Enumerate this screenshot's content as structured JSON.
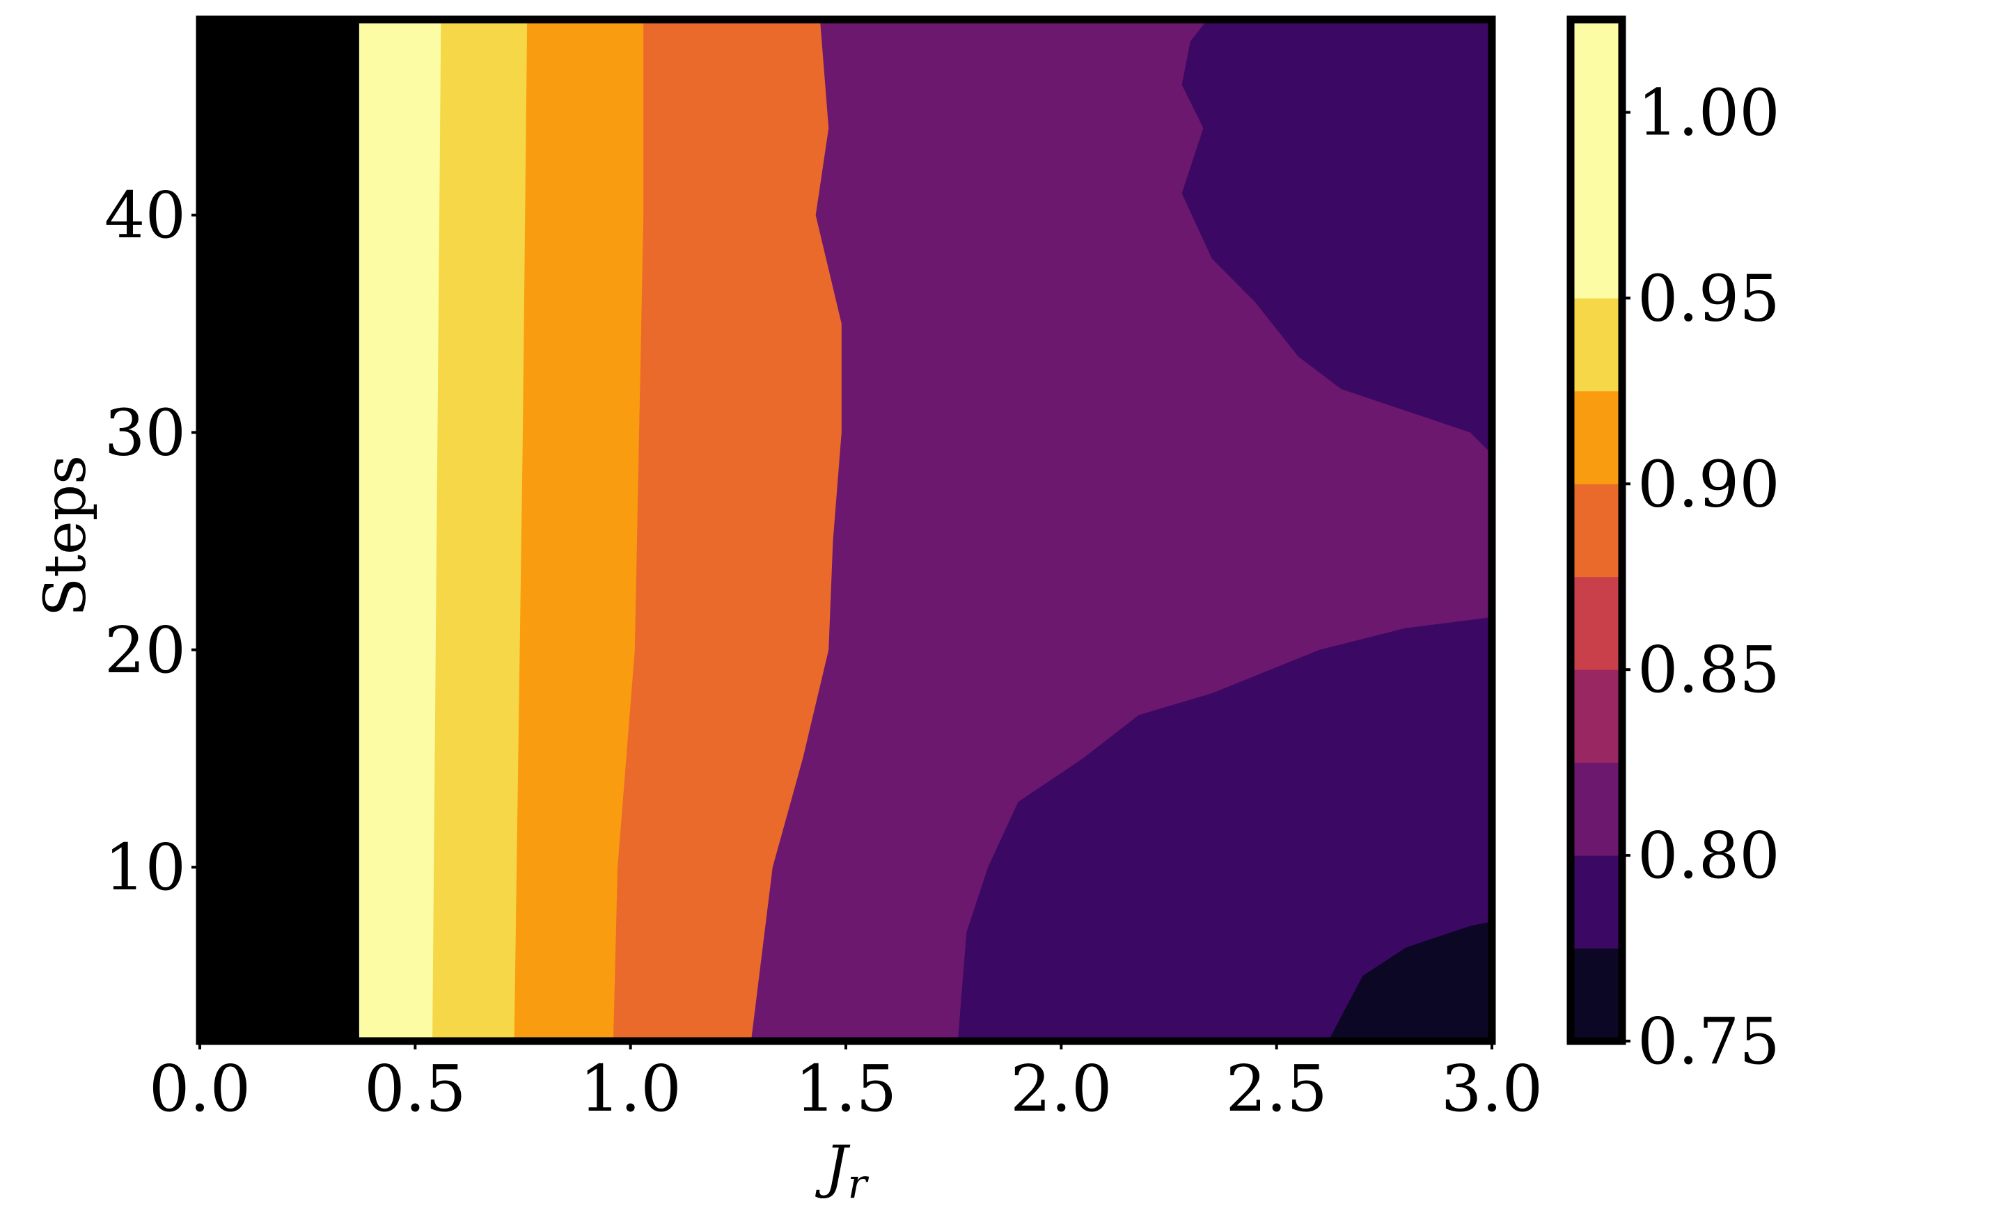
{
  "chart_data": {
    "type": "heatmap",
    "subtype": "filled-contour",
    "colormap": "inferno",
    "x": {
      "label": "J",
      "label_subscript": "r",
      "range": [
        0.0,
        3.0
      ],
      "ticks": [
        0.0,
        0.5,
        1.0,
        1.5,
        2.0,
        2.5,
        3.0
      ],
      "tick_labels": [
        "0.0",
        "0.5",
        "1.0",
        "1.5",
        "2.0",
        "2.5",
        "3.0"
      ]
    },
    "y": {
      "label": "Steps",
      "range": [
        2,
        49
      ],
      "ticks": [
        10,
        20,
        30,
        40
      ],
      "tick_labels": [
        "10",
        "20",
        "30",
        "40"
      ]
    },
    "colorbar": {
      "levels": [
        0.75,
        0.775,
        0.8,
        0.825,
        0.85,
        0.875,
        0.9,
        0.925,
        0.95,
        0.975,
        1.0,
        1.025
      ],
      "ticks": [
        0.75,
        0.8,
        0.85,
        0.9,
        0.95,
        1.0
      ],
      "tick_labels": [
        "0.75",
        "0.80",
        "0.85",
        "0.90",
        "0.95",
        "1.00"
      ],
      "band_colors": [
        "#0b0724",
        "#3b0964",
        "#6b186e",
        "#992762",
        "#c93f4a",
        "#ea6a2c",
        "#f99c10",
        "#f5d748",
        "#fbfca4"
      ]
    },
    "contours": {
      "vertical_boundaries": [
        {
          "lower": 1.0,
          "x_at_steps": [
            [
              2,
              0.17
            ],
            [
              49,
              0.17
            ]
          ]
        },
        {
          "lower": 0.975,
          "x_at_steps": [
            [
              2,
              0.37
            ],
            [
              49,
              0.37
            ]
          ]
        },
        {
          "lower": 0.95,
          "x_at_steps": [
            [
              2,
              0.54
            ],
            [
              49,
              0.56
            ]
          ]
        },
        {
          "lower": 0.925,
          "x_at_steps": [
            [
              2,
              0.73
            ],
            [
              30,
              0.75
            ],
            [
              49,
              0.76
            ]
          ]
        },
        {
          "lower": 0.9,
          "x_at_steps": [
            [
              2,
              0.96
            ],
            [
              10,
              0.97
            ],
            [
              20,
              1.01
            ],
            [
              30,
              1.02
            ],
            [
              40,
              1.03
            ],
            [
              49,
              1.03
            ]
          ]
        },
        {
          "lower": 0.875,
          "x_at_steps": [
            [
              2,
              1.28
            ],
            [
              10,
              1.33
            ],
            [
              15,
              1.4
            ],
            [
              20,
              1.46
            ],
            [
              25,
              1.47
            ],
            [
              30,
              1.49
            ],
            [
              35,
              1.49
            ],
            [
              40,
              1.43
            ],
            [
              44,
              1.46
            ],
            [
              49,
              1.44
            ]
          ]
        }
      ],
      "level_080_region": [
        [
          1.76,
          2
        ],
        [
          1.78,
          7
        ],
        [
          1.83,
          10
        ],
        [
          1.9,
          13
        ],
        [
          2.05,
          15
        ],
        [
          2.18,
          17
        ],
        [
          2.35,
          18
        ],
        [
          2.6,
          20
        ],
        [
          2.8,
          21
        ],
        [
          3.0,
          21.5
        ],
        [
          3.0,
          29
        ],
        [
          2.95,
          30
        ],
        [
          2.8,
          31
        ],
        [
          2.65,
          32
        ],
        [
          2.55,
          33.5
        ],
        [
          2.45,
          36
        ],
        [
          2.35,
          38
        ],
        [
          2.28,
          41
        ],
        [
          2.33,
          44
        ],
        [
          2.28,
          46
        ],
        [
          2.3,
          48
        ],
        [
          2.34,
          49
        ],
        [
          3.0,
          49
        ],
        [
          3.0,
          2
        ]
      ],
      "level_075_region": [
        [
          2.62,
          2
        ],
        [
          2.7,
          5
        ],
        [
          2.8,
          6.3
        ],
        [
          2.95,
          7.3
        ],
        [
          3.0,
          7.5
        ],
        [
          3.0,
          2
        ]
      ]
    }
  }
}
